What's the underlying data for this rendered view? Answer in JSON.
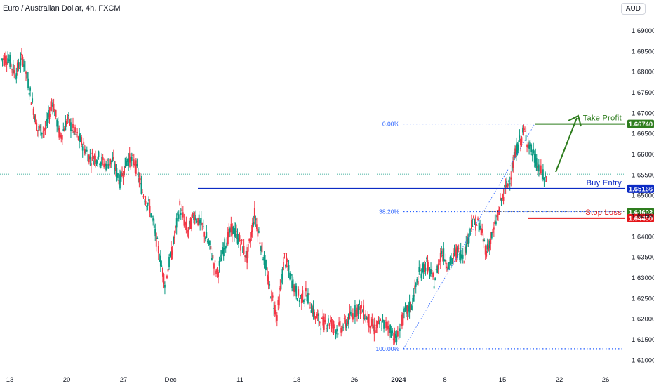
{
  "header": {
    "title": "Euro / Australian Dollar, 4h, FXCM",
    "currency": "AUD"
  },
  "colors": {
    "up": "#089981",
    "down": "#f23645",
    "buy_entry": "#0c2bc4",
    "take_profit": "#2e7d1e",
    "stop_loss": "#e5161a",
    "fib": "#2962ff"
  },
  "chart_data": {
    "type": "candlestick",
    "symbol": "EUR/AUD",
    "timeframe": "4h",
    "ylim": [
      1.6075,
      1.6975
    ],
    "y_ticks": [
      "1.69000",
      "1.68500",
      "1.68000",
      "1.67500",
      "1.67000",
      "1.66500",
      "1.66000",
      "1.65500",
      "1.65000",
      "1.64500",
      "1.64000",
      "1.63500",
      "1.63000",
      "1.62500",
      "1.62000",
      "1.61500",
      "1.61000"
    ],
    "x_ticks": [
      "13",
      "20",
      "27",
      "Dec",
      "11",
      "18",
      "26",
      "2024",
      "8",
      "15",
      "22",
      "26"
    ],
    "annotations": {
      "take_profit": {
        "label": "Take Profit",
        "price": "1.66740"
      },
      "buy_entry": {
        "label": "Buy Entry",
        "price": "1.65166"
      },
      "stop_loss": {
        "label": "Stop Loss",
        "price": "1.64450"
      },
      "fib_level_price": "1.64602",
      "fib_levels": [
        {
          "label": "0.00%",
          "price": 1.6674
        },
        {
          "label": "38.20%",
          "price": 1.6461
        },
        {
          "label": "100.00%",
          "price": 1.6128
        }
      ],
      "current_price": 1.6552
    },
    "path": [
      [
        1.683,
        1.684
      ],
      [
        1.678,
        1.681
      ],
      [
        1.682,
        1.685
      ],
      [
        1.674,
        1.676
      ],
      [
        1.668,
        1.664
      ],
      [
        1.665,
        1.667
      ],
      [
        1.672,
        1.674
      ],
      [
        1.662,
        1.666
      ],
      [
        1.668,
        1.669
      ],
      [
        1.666,
        1.664
      ],
      [
        1.662,
        1.663
      ],
      [
        1.658,
        1.66
      ],
      [
        1.66,
        1.659
      ],
      [
        1.657,
        1.658
      ],
      [
        1.66,
        1.657
      ],
      [
        1.652,
        1.655
      ],
      [
        1.658,
        1.66
      ],
      [
        1.656,
        1.66
      ],
      [
        1.65,
        1.652
      ],
      [
        1.646,
        1.648
      ],
      [
        1.64,
        1.636
      ],
      [
        1.63,
        1.628
      ],
      [
        1.634,
        1.64
      ],
      [
        1.645,
        1.65
      ],
      [
        1.64,
        1.642
      ],
      [
        1.645,
        1.646
      ],
      [
        1.642,
        1.643
      ],
      [
        1.638,
        1.637
      ],
      [
        1.632,
        1.63
      ],
      [
        1.636,
        1.64
      ],
      [
        1.641,
        1.643
      ],
      [
        1.64,
        1.638
      ],
      [
        1.636,
        1.634
      ],
      [
        1.646,
        1.645
      ],
      [
        1.638,
        1.636
      ],
      [
        1.63,
        1.625
      ],
      [
        1.622,
        1.62
      ],
      [
        1.634,
        1.636
      ],
      [
        1.63,
        1.628
      ],
      [
        1.626,
        1.624
      ],
      [
        1.627,
        1.625
      ],
      [
        1.622,
        1.62
      ],
      [
        1.618,
        1.62
      ],
      [
        1.619,
        1.62
      ],
      [
        1.618,
        1.617
      ],
      [
        1.619,
        1.618
      ],
      [
        1.622,
        1.62
      ],
      [
        1.624,
        1.622
      ],
      [
        1.622,
        1.619
      ],
      [
        1.618,
        1.617
      ],
      [
        1.62,
        1.618
      ],
      [
        1.621,
        1.615
      ],
      [
        1.613,
        1.617
      ],
      [
        1.62,
        1.622
      ],
      [
        1.624,
        1.623
      ],
      [
        1.63,
        1.632
      ],
      [
        1.634,
        1.633
      ],
      [
        1.628,
        1.63
      ],
      [
        1.635,
        1.638
      ],
      [
        1.632,
        1.634
      ],
      [
        1.636,
        1.637
      ],
      [
        1.634,
        1.637
      ],
      [
        1.641,
        1.646
      ],
      [
        1.644,
        1.642
      ],
      [
        1.638,
        1.635
      ],
      [
        1.64,
        1.643
      ],
      [
        1.648,
        1.65
      ],
      [
        1.652,
        1.655
      ],
      [
        1.658,
        1.664
      ],
      [
        1.667,
        1.664
      ],
      [
        1.662,
        1.66
      ],
      [
        1.658,
        1.655
      ],
      [
        1.655,
        1.652
      ]
    ]
  }
}
